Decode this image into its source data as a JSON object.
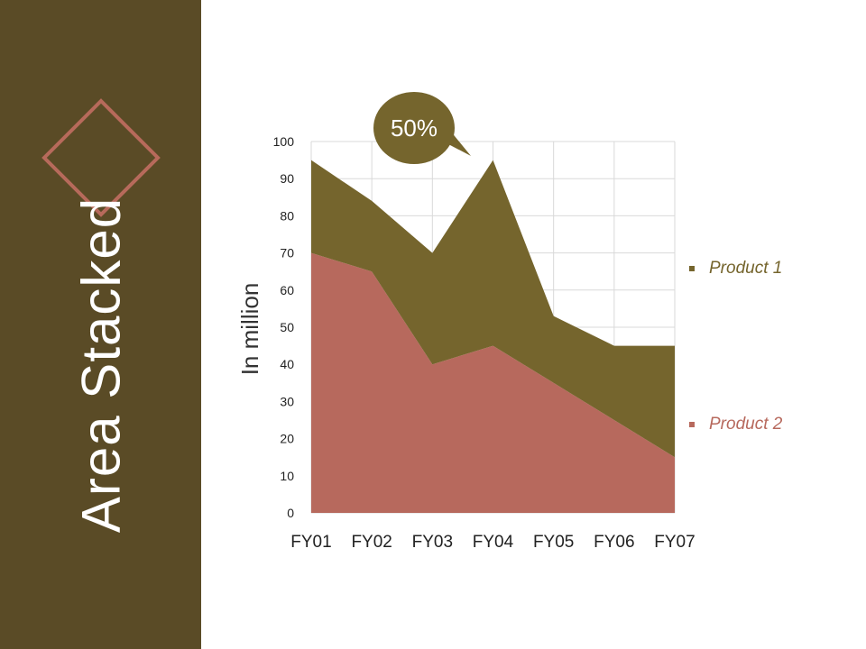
{
  "slide": {
    "title": "Area Stacked"
  },
  "colors": {
    "sidebar": "#5a4b26",
    "diamond_outline": "#b76a5b",
    "product1": "#75652d",
    "product2": "#b7695d",
    "callout": "#75652d",
    "grid": "#d9d9d9"
  },
  "callout": {
    "text": "50%"
  },
  "chart_data": {
    "type": "area",
    "stacked": true,
    "categories": [
      "FY01",
      "FY02",
      "FY03",
      "FY04",
      "FY05",
      "FY06",
      "FY07"
    ],
    "series": [
      {
        "name": "Product 1",
        "values": [
          25,
          19,
          30,
          50,
          18,
          20,
          30
        ]
      },
      {
        "name": "Product 2",
        "values": [
          70,
          65,
          40,
          45,
          35,
          25,
          15
        ]
      }
    ],
    "ylabel": "In million",
    "xlabel": "",
    "ylim": [
      0,
      100
    ],
    "yticks": [
      0,
      10,
      20,
      30,
      40,
      50,
      60,
      70,
      80,
      90,
      100
    ],
    "grid": true,
    "legend_position": "right"
  }
}
